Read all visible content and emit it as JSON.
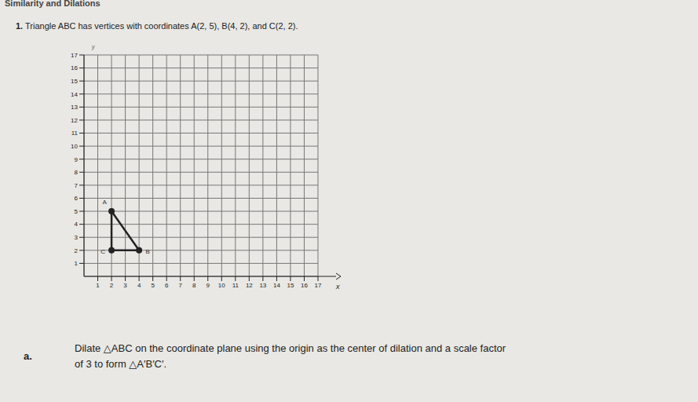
{
  "header": "Similarity and Dilations",
  "problem": {
    "number": "1.",
    "text": "Triangle ABC has vertices with coordinates A(2, 5), B(4, 2), and C(2, 2)."
  },
  "part_a": {
    "label": "a.",
    "lines": [
      "Dilate △ABC on the coordinate plane using the origin as the center of dilation and a scale factor",
      "of 3 to form △A′B′C′."
    ]
  },
  "chart_data": {
    "type": "scatter",
    "x_label": "x",
    "y_label": "y",
    "points": [
      {
        "label": "A",
        "x": 2,
        "y": 5
      },
      {
        "label": "B",
        "x": 4,
        "y": 2
      },
      {
        "label": "C",
        "x": 2,
        "y": 2
      }
    ],
    "xlim": [
      0,
      17
    ],
    "ylim": [
      0,
      17
    ],
    "xticks": [
      1,
      2,
      3,
      4,
      5,
      6,
      7,
      8,
      9,
      10,
      11,
      12,
      13,
      14,
      15,
      16,
      17
    ],
    "yticks": [
      1,
      2,
      3,
      4,
      5,
      6,
      7,
      8,
      9,
      10,
      11,
      12,
      13,
      14,
      15,
      16,
      17
    ],
    "grid": true,
    "color": "#222222",
    "marker": "circle",
    "line_style": "solid"
  }
}
